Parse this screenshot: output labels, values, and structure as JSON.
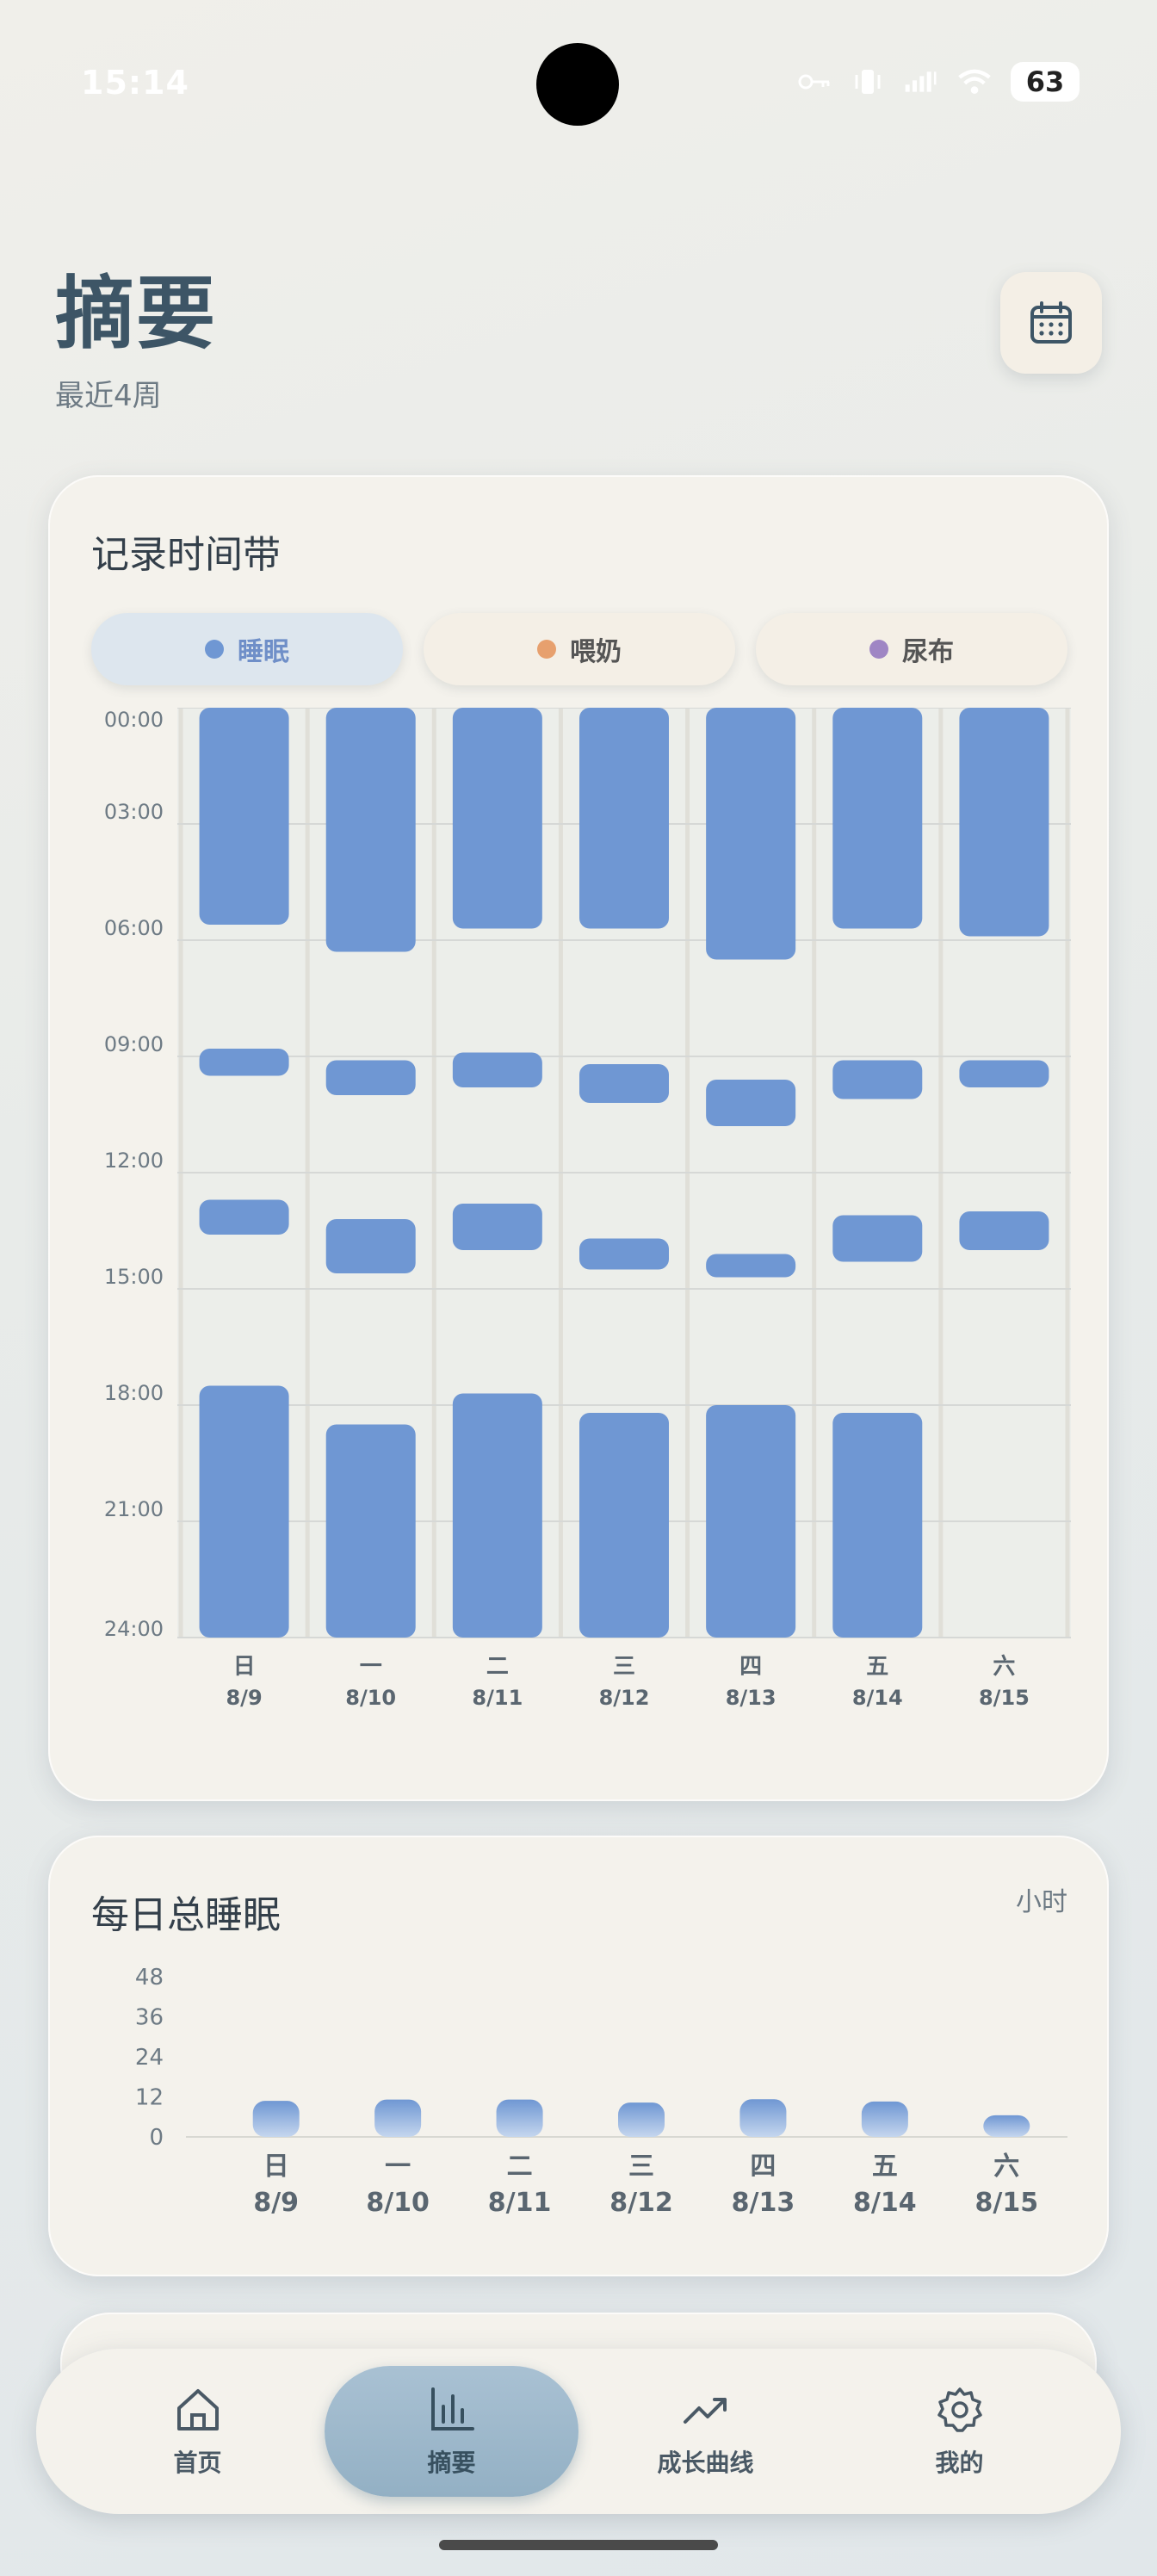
{
  "status_bar": {
    "time": "15:14",
    "battery": "63",
    "icons": [
      "key-icon",
      "vibrate-icon",
      "signal-icon",
      "wifi-icon"
    ]
  },
  "header": {
    "title": "摘要",
    "subtitle": "最近4周",
    "calendar_icon": "calendar-icon"
  },
  "timeline": {
    "title": "记录时间带",
    "legend": [
      {
        "label": "睡眠",
        "color": "#6f97d3",
        "active": true
      },
      {
        "label": "喂奶",
        "color": "#e7a06e",
        "active": false
      },
      {
        "label": "尿布",
        "color": "#9f86c4",
        "active": false
      }
    ],
    "y_ticks": [
      "00:00",
      "03:00",
      "06:00",
      "09:00",
      "12:00",
      "15:00",
      "18:00",
      "21:00",
      "24:00"
    ],
    "days": [
      {
        "weekday": "日",
        "date": "8/9",
        "sleep": [
          [
            0,
            5.6
          ],
          [
            8.8,
            9.5
          ],
          [
            12.7,
            13.6
          ],
          [
            17.5,
            24
          ]
        ]
      },
      {
        "weekday": "一",
        "date": "8/10",
        "sleep": [
          [
            0,
            6.3
          ],
          [
            9.1,
            10.0
          ],
          [
            13.2,
            14.6
          ],
          [
            18.5,
            24
          ]
        ]
      },
      {
        "weekday": "二",
        "date": "8/11",
        "sleep": [
          [
            0,
            5.7
          ],
          [
            8.9,
            9.8
          ],
          [
            12.8,
            14.0
          ],
          [
            17.7,
            24
          ]
        ]
      },
      {
        "weekday": "三",
        "date": "8/12",
        "sleep": [
          [
            0,
            5.7
          ],
          [
            9.2,
            10.2
          ],
          [
            13.7,
            14.5
          ],
          [
            18.2,
            24
          ]
        ]
      },
      {
        "weekday": "四",
        "date": "8/13",
        "sleep": [
          [
            0,
            6.5
          ],
          [
            9.6,
            10.8
          ],
          [
            14.1,
            14.7
          ],
          [
            18.0,
            24
          ]
        ]
      },
      {
        "weekday": "五",
        "date": "8/14",
        "sleep": [
          [
            0,
            5.7
          ],
          [
            9.1,
            10.1
          ],
          [
            13.1,
            14.3
          ],
          [
            18.2,
            24
          ]
        ]
      },
      {
        "weekday": "六",
        "date": "8/15",
        "sleep": [
          [
            0,
            5.9
          ],
          [
            9.1,
            9.8
          ],
          [
            13.0,
            14.0
          ]
        ]
      }
    ]
  },
  "chart_data": {
    "type": "bar",
    "title": "每日总睡眠",
    "unit": "小时",
    "categories": [
      "日 8/9",
      "一 8/10",
      "二 8/11",
      "三 8/12",
      "四 8/13",
      "五 8/14",
      "六 8/15"
    ],
    "weekdays": [
      "日",
      "一",
      "二",
      "三",
      "四",
      "五",
      "六"
    ],
    "dates": [
      "8/9",
      "8/10",
      "8/11",
      "8/12",
      "8/13",
      "8/14",
      "8/15"
    ],
    "values": [
      10.8,
      11.2,
      11.2,
      10.3,
      11.3,
      10.6,
      6.5
    ],
    "y_ticks": [
      "0",
      "12",
      "24",
      "36",
      "48"
    ],
    "ylim": [
      0,
      48
    ],
    "color": "#6f97d3",
    "grid": false
  },
  "bottom_nav": [
    {
      "label": "首页",
      "icon": "home-icon",
      "active": false
    },
    {
      "label": "摘要",
      "icon": "bar-chart-icon",
      "active": true
    },
    {
      "label": "成长曲线",
      "icon": "trending-up-icon",
      "active": false
    },
    {
      "label": "我的",
      "icon": "gear-icon",
      "active": false
    }
  ]
}
